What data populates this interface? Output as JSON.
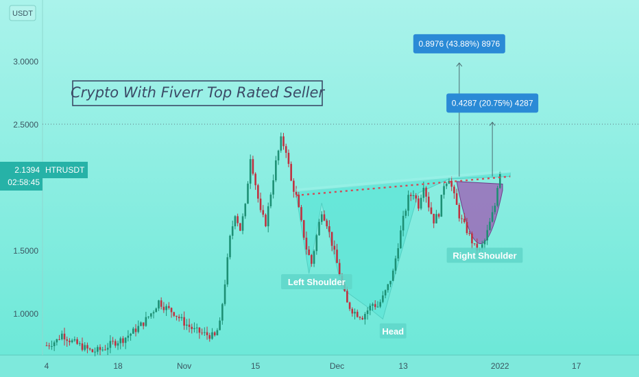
{
  "chart_data": {
    "type": "candlestick",
    "symbol": "HTRUSDT",
    "unit": "USDT",
    "title": "Crypto With Fiverr Top Rated Seller",
    "y_ticks": [
      "3.0000",
      "2.5000",
      "1.5000",
      "1.0000"
    ],
    "ylim": [
      0.72,
      3.5
    ],
    "x_ticks": [
      {
        "label": "4",
        "day": 0
      },
      {
        "label": "18",
        "day": 14
      },
      {
        "label": "Nov",
        "day": 27
      },
      {
        "label": "15",
        "day": 41
      },
      {
        "label": "Dec",
        "day": 57
      },
      {
        "label": "13",
        "day": 70
      },
      {
        "label": "2022",
        "day": 89
      },
      {
        "label": "17",
        "day": 104
      }
    ],
    "price_path": [
      [
        0,
        0.75
      ],
      [
        2,
        0.79
      ],
      [
        3,
        0.84
      ],
      [
        5,
        0.78
      ],
      [
        7,
        0.74
      ],
      [
        9,
        0.7
      ],
      [
        11,
        0.72
      ],
      [
        13,
        0.77
      ],
      [
        15,
        0.8
      ],
      [
        17,
        0.86
      ],
      [
        19,
        0.93
      ],
      [
        21,
        1.03
      ],
      [
        22,
        1.1
      ],
      [
        23,
        1.06
      ],
      [
        25,
        1.01
      ],
      [
        27,
        0.93
      ],
      [
        29,
        0.87
      ],
      [
        31,
        0.84
      ],
      [
        33,
        0.82
      ],
      [
        34,
        0.92
      ],
      [
        35,
        1.25
      ],
      [
        36,
        1.6
      ],
      [
        37,
        1.8
      ],
      [
        38,
        1.67
      ],
      [
        39,
        1.85
      ],
      [
        40,
        2.25
      ],
      [
        41,
        2.03
      ],
      [
        42,
        1.8
      ],
      [
        43,
        1.72
      ],
      [
        44,
        1.96
      ],
      [
        45,
        2.2
      ],
      [
        46,
        2.38
      ],
      [
        47,
        2.3
      ],
      [
        48,
        2.05
      ],
      [
        49,
        1.93
      ],
      [
        50,
        1.72
      ],
      [
        51,
        1.52
      ],
      [
        52,
        1.4
      ],
      [
        53,
        1.62
      ],
      [
        54,
        1.82
      ],
      [
        55,
        1.72
      ],
      [
        56,
        1.56
      ],
      [
        57,
        1.4
      ],
      [
        58,
        1.23
      ],
      [
        59,
        1.08
      ],
      [
        60,
        1.03
      ],
      [
        61,
        1.0
      ],
      [
        62,
        0.98
      ],
      [
        63,
        1.03
      ],
      [
        64,
        1.08
      ],
      [
        65,
        1.06
      ],
      [
        66,
        1.13
      ],
      [
        67,
        1.22
      ],
      [
        68,
        1.33
      ],
      [
        69,
        1.55
      ],
      [
        70,
        1.75
      ],
      [
        71,
        1.92
      ],
      [
        72,
        1.96
      ],
      [
        73,
        1.86
      ],
      [
        74,
        2.03
      ],
      [
        75,
        1.86
      ],
      [
        76,
        1.74
      ],
      [
        77,
        1.8
      ],
      [
        78,
        2.03
      ],
      [
        79,
        2.08
      ],
      [
        80,
        1.93
      ],
      [
        81,
        1.78
      ],
      [
        82,
        1.7
      ],
      [
        83,
        1.62
      ],
      [
        84,
        1.53
      ],
      [
        85,
        1.5
      ],
      [
        86,
        1.58
      ],
      [
        87,
        1.72
      ],
      [
        88,
        1.86
      ],
      [
        88.5,
        2.02
      ],
      [
        89,
        2.14
      ]
    ],
    "current_price": "2.1394",
    "countdown": "02:58:45",
    "neckline": {
      "from": [
        49,
        1.94
      ],
      "to": [
        91,
        2.09
      ]
    },
    "horizontal_line": 2.505,
    "annotations": [
      {
        "label": "Left Shoulder",
        "day": 53,
        "price": 1.25
      },
      {
        "label": "Head",
        "day": 68,
        "price": 0.86
      },
      {
        "label": "Right Shoulder",
        "day": 86,
        "price": 1.46
      }
    ],
    "measurements": [
      {
        "label": "0.8976 (43.88%) 8976",
        "day": 81,
        "from": 2.09,
        "to": 2.99
      },
      {
        "label": "0.4287 (20.75%) 4287",
        "day": 87.5,
        "from": 2.09,
        "to": 2.52
      }
    ]
  }
}
